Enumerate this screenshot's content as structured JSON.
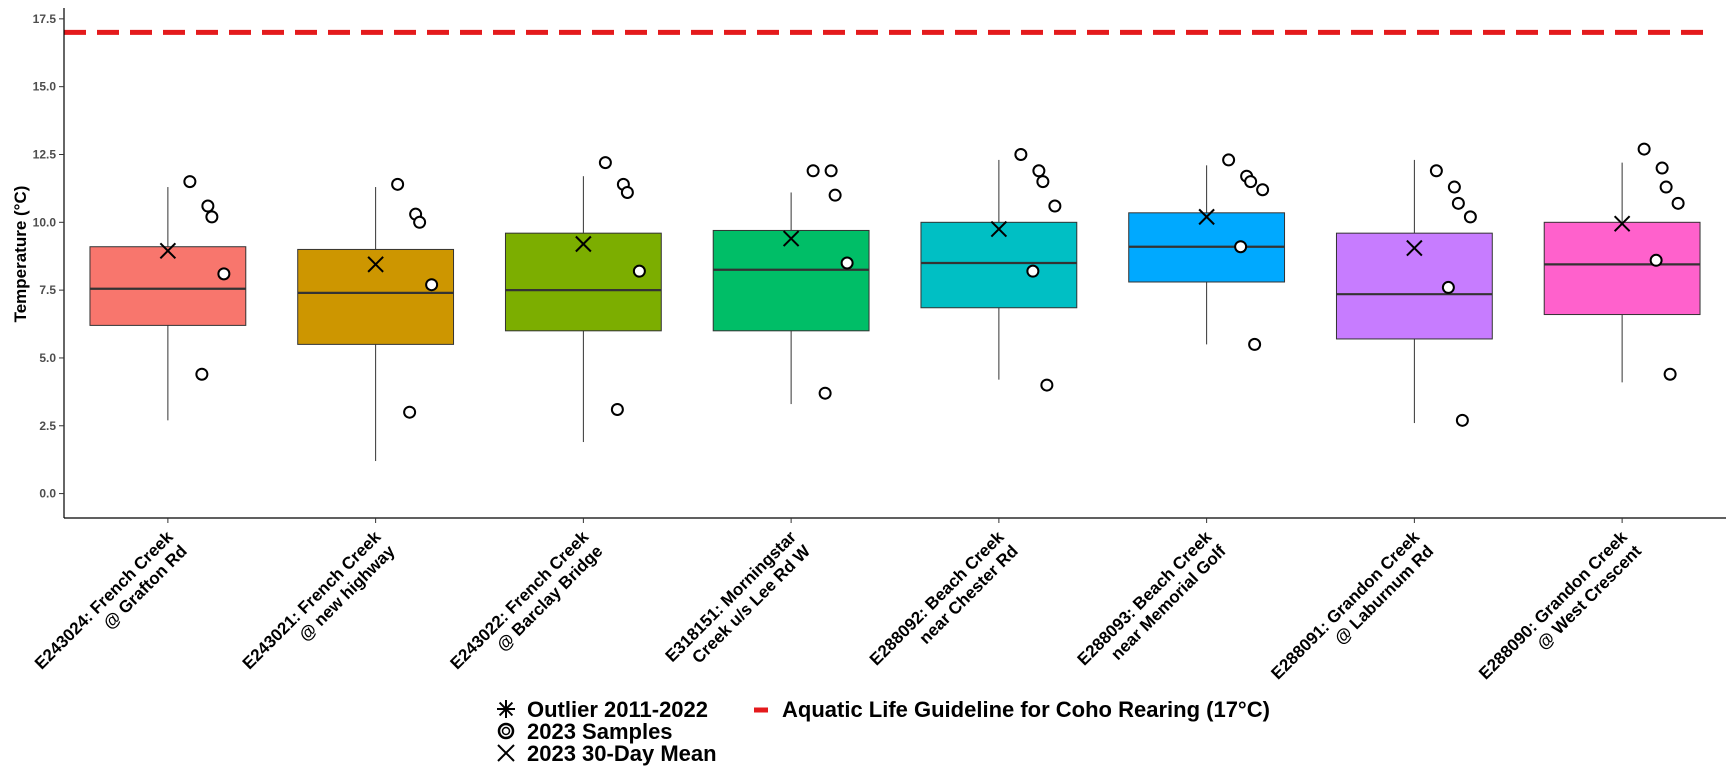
{
  "chart_data": {
    "type": "box",
    "ylabel": "Temperature (°C)",
    "xlabel": "",
    "ylim": [
      -0.9,
      17.9
    ],
    "y_ticks": [
      "0.0",
      "2.5",
      "5.0",
      "7.5",
      "10.0",
      "12.5",
      "15.0",
      "17.5"
    ],
    "grid": false,
    "guideline": {
      "value": 17,
      "color": "#e41a1c",
      "label": "Aquatic Life Guideline for Coho Rearing (17°C)"
    },
    "categories": [
      "E243024: French Creek @ Grafton Rd",
      "E243021: French Creek @ new highway",
      "E243022: French Creek @ Barclay Bridge",
      "E318151: Morningstar Creek u/s Lee Rd W",
      "E288092: Beach Creek near Chester Rd",
      "E288093: Beach Creek near Memorial Golf",
      "E288091: Grandon Creek @ Laburnum Rd",
      "E288090: Grandon Creek @ West Crescent"
    ],
    "category_lines": [
      [
        "E243024: French Creek",
        "@ Grafton Rd"
      ],
      [
        "E243021: French Creek",
        "@ new highway"
      ],
      [
        "E243022: French Creek",
        "@ Barclay Bridge"
      ],
      [
        "E318151: Morningstar",
        "Creek u/s Lee Rd W"
      ],
      [
        "E288092: Beach Creek",
        "near Chester Rd"
      ],
      [
        "E288093: Beach Creek",
        "near Memorial Golf"
      ],
      [
        "E288091: Grandon Creek",
        "@ Laburnum Rd"
      ],
      [
        "E288090: Grandon Creek",
        "@ West Crescent"
      ]
    ],
    "boxes": [
      {
        "color": "#F8766D",
        "whisker_low": 2.7,
        "q1": 6.2,
        "median": 7.55,
        "q3": 9.1,
        "whisker_high": 11.3,
        "mean_2023": 8.95,
        "samples_2023": [
          11.5,
          10.6,
          10.2,
          8.1,
          4.4
        ]
      },
      {
        "color": "#CD9600",
        "whisker_low": 1.2,
        "q1": 5.5,
        "median": 7.4,
        "q3": 9.0,
        "whisker_high": 11.3,
        "mean_2023": 8.45,
        "samples_2023": [
          11.4,
          10.3,
          10.0,
          7.7,
          3.0
        ]
      },
      {
        "color": "#7CAE00",
        "whisker_low": 1.9,
        "q1": 6.0,
        "median": 7.5,
        "q3": 9.6,
        "whisker_high": 11.7,
        "mean_2023": 9.2,
        "samples_2023": [
          12.2,
          11.4,
          11.1,
          8.2,
          3.1
        ]
      },
      {
        "color": "#00BE67",
        "whisker_low": 3.3,
        "q1": 6.0,
        "median": 8.25,
        "q3": 9.7,
        "whisker_high": 11.1,
        "mean_2023": 9.4,
        "samples_2023": [
          11.9,
          11.9,
          11.0,
          8.5,
          3.7
        ]
      },
      {
        "color": "#00BFC4",
        "whisker_low": 4.2,
        "q1": 6.85,
        "median": 8.5,
        "q3": 10.0,
        "whisker_high": 12.3,
        "mean_2023": 9.75,
        "samples_2023": [
          12.5,
          11.9,
          11.5,
          10.6,
          8.2,
          4.0
        ]
      },
      {
        "color": "#00A9FF",
        "whisker_low": 5.5,
        "q1": 7.8,
        "median": 9.1,
        "q3": 10.35,
        "whisker_high": 12.1,
        "mean_2023": 10.2,
        "samples_2023": [
          12.3,
          11.7,
          11.5,
          11.2,
          9.1,
          5.5
        ]
      },
      {
        "color": "#C77CFF",
        "whisker_low": 2.6,
        "q1": 5.7,
        "median": 7.35,
        "q3": 9.6,
        "whisker_high": 12.3,
        "mean_2023": 9.05,
        "samples_2023": [
          11.9,
          11.3,
          10.7,
          10.2,
          7.6,
          2.7
        ]
      },
      {
        "color": "#FF61CC",
        "whisker_low": 4.1,
        "q1": 6.6,
        "median": 8.45,
        "q3": 10.0,
        "whisker_high": 12.2,
        "mean_2023": 9.95,
        "samples_2023": [
          12.7,
          12.0,
          11.3,
          10.7,
          8.6,
          4.4
        ]
      }
    ],
    "legend": {
      "placement": "bottom",
      "outlier_label": "Outlier 2011-2022",
      "samples_label": "2023 Samples",
      "mean_label": "2023 30-Day Mean",
      "guideline_label": "Aquatic Life Guideline for Coho Rearing (17°C)"
    }
  }
}
